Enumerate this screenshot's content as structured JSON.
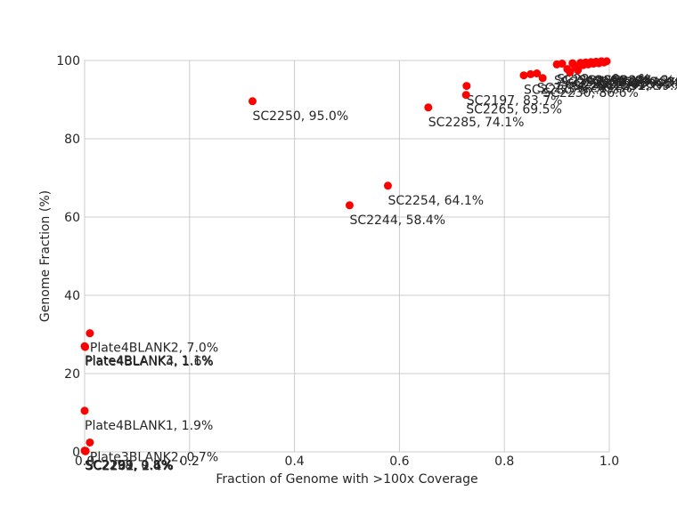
{
  "chart_data": {
    "type": "scatter",
    "title": "",
    "xlabel": "Fraction of Genome with >100x Coverage",
    "ylabel": "Genome Fraction (%)",
    "xlim": [
      0.0,
      1.0
    ],
    "ylim": [
      0,
      100
    ],
    "x_ticks": [
      "0.0",
      "0.2",
      "0.4",
      "0.6",
      "0.8",
      "1.0"
    ],
    "y_ticks": [
      "0",
      "20",
      "40",
      "60",
      "80",
      "100"
    ],
    "grid": true,
    "legend": "none",
    "marker_color": "#ff0000",
    "label_color": "#262626",
    "points": [
      {
        "x": 0.32,
        "y": 89.6,
        "label": "SC2250, 95.0%"
      },
      {
        "x": 0.505,
        "y": 63.0,
        "label": "SC2244, 58.4%"
      },
      {
        "x": 0.578,
        "y": 68.0,
        "label": "SC2254, 64.1%"
      },
      {
        "x": 0.655,
        "y": 88.0,
        "label": "SC2285, 74.1%"
      },
      {
        "x": 0.728,
        "y": 93.5,
        "label": "SC2197, 83.7%"
      },
      {
        "x": 0.727,
        "y": 91.2,
        "label": "SC2265, 69.5%"
      },
      {
        "x": 0.837,
        "y": 96.2,
        "label": "SC2280, 9x.x%"
      },
      {
        "x": 0.85,
        "y": 96.5,
        "label": ""
      },
      {
        "x": 0.862,
        "y": 96.7,
        "label": "SC2236, 9x.x%"
      },
      {
        "x": 0.873,
        "y": 95.5,
        "label": "SC2230, 86.6%"
      },
      {
        "x": 0.9,
        "y": 99.0,
        "label": "SC22xx, 9x.x%"
      },
      {
        "x": 0.91,
        "y": 99.2,
        "label": ""
      },
      {
        "x": 0.92,
        "y": 97.8,
        "label": ""
      },
      {
        "x": 0.925,
        "y": 97.0,
        "label": ""
      },
      {
        "x": 0.93,
        "y": 99.3,
        "label": ""
      },
      {
        "x": 0.935,
        "y": 98.3,
        "label": ""
      },
      {
        "x": 0.94,
        "y": 97.5,
        "label": ""
      },
      {
        "x": 0.945,
        "y": 99.4,
        "label": ""
      },
      {
        "x": 0.95,
        "y": 98.8,
        "label": ""
      },
      {
        "x": 0.955,
        "y": 99.5,
        "label": ""
      },
      {
        "x": 0.96,
        "y": 99.0,
        "label": ""
      },
      {
        "x": 0.965,
        "y": 99.6,
        "label": ""
      },
      {
        "x": 0.97,
        "y": 99.2,
        "label": ""
      },
      {
        "x": 0.975,
        "y": 99.7,
        "label": ""
      },
      {
        "x": 0.98,
        "y": 99.3,
        "label": ""
      },
      {
        "x": 0.985,
        "y": 99.8,
        "label": ""
      },
      {
        "x": 0.99,
        "y": 99.5,
        "label": ""
      },
      {
        "x": 0.995,
        "y": 99.8,
        "label": ""
      },
      {
        "x": 0.0,
        "y": 27.0,
        "label": "Plate4BLANK3, 1.1%"
      },
      {
        "x": 0.01,
        "y": 30.3,
        "label": "Plate4BLANK2, 7.0%"
      },
      {
        "x": 0.001,
        "y": 26.8,
        "label": "Plate4BLANK4, 1.6%"
      },
      {
        "x": 0.0,
        "y": 10.5,
        "label": "Plate4BLANK1, 1.9%"
      },
      {
        "x": 0.01,
        "y": 2.4,
        "label": "Plate3BLANK2, 0.7%"
      },
      {
        "x": 0.0,
        "y": 0.3,
        "label": "SC2298, 0.8%"
      },
      {
        "x": 0.001,
        "y": 0.2,
        "label": "SC2199, 9.6%"
      },
      {
        "x": 0.002,
        "y": 0.25,
        "label": "SC2201, 1.1%"
      },
      {
        "x": 0.0015,
        "y": 0.15,
        "label": "SC2262, 2.4%"
      }
    ],
    "cluster_labels": [
      {
        "text": "SC2269, 96.x%"
      },
      {
        "text": "SC2275, 97.x%"
      },
      {
        "text": "SC2231, 98.x%"
      },
      {
        "text": "SC2241, 99.x%"
      },
      {
        "text": "SC2263, 98.x%"
      },
      {
        "text": "SC2287, 99.x%"
      },
      {
        "text": "SC2290, 99.x%"
      },
      {
        "text": "SC2292, 99.x%"
      },
      {
        "text": "SC2245, 9x.x%"
      },
      {
        "text": "SC2277, 9x.x%"
      }
    ]
  }
}
